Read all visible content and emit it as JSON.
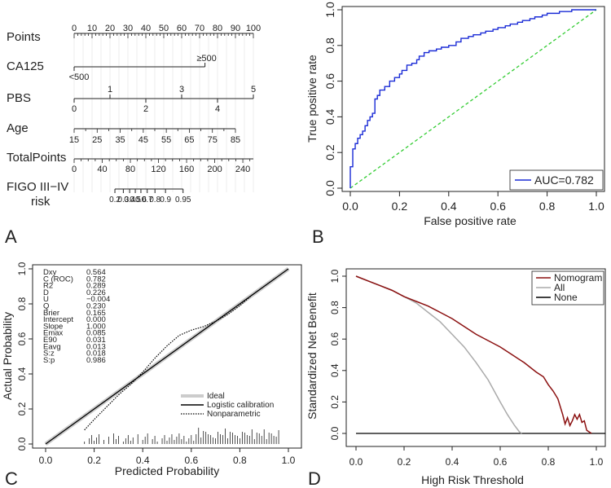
{
  "panel_labels": [
    "A",
    "B",
    "C",
    "D"
  ],
  "chart_data": [
    {
      "type": "nomogram",
      "panel": "A",
      "rows": [
        {
          "label": "Points",
          "ticks": [
            "0",
            "10",
            "20",
            "30",
            "40",
            "50",
            "60",
            "70",
            "80",
            "90",
            "100"
          ],
          "min": 0,
          "max": 100
        },
        {
          "label": "CA125",
          "levels": [
            {
              "text": "≥500",
              "points": 73
            },
            {
              "text": "<500",
              "points": 0
            }
          ]
        },
        {
          "label": "PBS",
          "levels_top": [
            {
              "text": "1",
              "points": 20
            },
            {
              "text": "3",
              "points": 60
            },
            {
              "text": "5",
              "points": 100
            }
          ],
          "levels_bottom": [
            {
              "text": "0",
              "points": 0
            },
            {
              "text": "2",
              "points": 40
            },
            {
              "text": "4",
              "points": 80
            }
          ]
        },
        {
          "label": "Age",
          "ticks": [
            "15",
            "25",
            "35",
            "45",
            "55",
            "65",
            "75",
            "85"
          ],
          "min_points": 0,
          "max_points": 90
        },
        {
          "label": "TotalPoints",
          "ticks": [
            "0",
            "40",
            "80",
            "120",
            "160",
            "200",
            "240"
          ],
          "min": 0,
          "max": 255
        },
        {
          "label": "FIGO III−IV",
          "label2": "risk",
          "ticks": [
            {
              "text": "0.2",
              "tp": 58
            },
            {
              "text": "0.3",
              "tp": 70
            },
            {
              "text": "0.4",
              "tp": 79
            },
            {
              "text": "0.5",
              "tp": 87
            },
            {
              "text": "0.6",
              "tp": 95
            },
            {
              "text": "0.7",
              "tp": 104
            },
            {
              "text": "0.8",
              "tp": 115
            },
            {
              "text": "0.9",
              "tp": 130
            },
            {
              "text": "0.95",
              "tp": 155
            }
          ]
        }
      ]
    },
    {
      "type": "line",
      "panel": "B",
      "title": "",
      "xlabel": "False positive rate",
      "ylabel": "True positive rate",
      "xlim": [
        0,
        1
      ],
      "ylim": [
        0,
        1
      ],
      "xticks": [
        "0.0",
        "0.2",
        "0.4",
        "0.6",
        "0.8",
        "1.0"
      ],
      "yticks": [
        "0.0",
        "0.2",
        "0.4",
        "0.6",
        "0.8",
        "1.0"
      ],
      "legend": "AUC=0.782",
      "legend_position": "bottom-right",
      "series": [
        {
          "name": "ROC",
          "color": "#1a2bd6",
          "x": [
            0,
            0,
            0.01,
            0.01,
            0.02,
            0.03,
            0.04,
            0.05,
            0.06,
            0.07,
            0.08,
            0.09,
            0.1,
            0.1,
            0.11,
            0.12,
            0.14,
            0.16,
            0.18,
            0.2,
            0.21,
            0.23,
            0.25,
            0.27,
            0.28,
            0.3,
            0.32,
            0.35,
            0.37,
            0.4,
            0.43,
            0.45,
            0.48,
            0.5,
            0.53,
            0.55,
            0.58,
            0.6,
            0.63,
            0.65,
            0.68,
            0.7,
            0.73,
            0.75,
            0.78,
            0.8,
            0.83,
            0.85,
            0.88,
            0.9,
            0.93,
            0.96,
            1.0
          ],
          "y": [
            0,
            0.06,
            0.12,
            0.18,
            0.22,
            0.25,
            0.28,
            0.3,
            0.32,
            0.35,
            0.38,
            0.4,
            0.42,
            0.48,
            0.5,
            0.52,
            0.55,
            0.57,
            0.6,
            0.62,
            0.64,
            0.66,
            0.69,
            0.7,
            0.72,
            0.74,
            0.76,
            0.77,
            0.78,
            0.79,
            0.8,
            0.82,
            0.84,
            0.85,
            0.86,
            0.87,
            0.88,
            0.89,
            0.9,
            0.91,
            0.92,
            0.93,
            0.94,
            0.95,
            0.96,
            0.97,
            0.98,
            0.98,
            0.99,
            0.99,
            1.0,
            1.0,
            1.0
          ]
        },
        {
          "name": "Reference",
          "color": "#33cc33",
          "dashed": true,
          "x": [
            0,
            1
          ],
          "y": [
            0,
            1
          ]
        }
      ]
    },
    {
      "type": "line",
      "panel": "C",
      "xlabel": "Predicted Probability",
      "ylabel": "Actual Probability",
      "xlim": [
        0,
        1
      ],
      "ylim": [
        0,
        1
      ],
      "xticks": [
        "0.0",
        "0.2",
        "0.4",
        "0.6",
        "0.8",
        "1.0"
      ],
      "yticks": [
        "0.0",
        "0.2",
        "0.4",
        "0.6",
        "0.8",
        "1.0"
      ],
      "stats": [
        {
          "name": "Dxy",
          "value": "0.564"
        },
        {
          "name": "C (ROC)",
          "value": "0.782"
        },
        {
          "name": "R2",
          "value": "0.289"
        },
        {
          "name": "D",
          "value": "0.226"
        },
        {
          "name": "U",
          "value": "−0.004"
        },
        {
          "name": "Q",
          "value": "0.230"
        },
        {
          "name": "Brier",
          "value": "0.165"
        },
        {
          "name": "Intercept",
          "value": "0.000"
        },
        {
          "name": "Slope",
          "value": "1.000"
        },
        {
          "name": "Emax",
          "value": "0.085"
        },
        {
          "name": "E90",
          "value": "0.031"
        },
        {
          "name": "Eavg",
          "value": "0.013"
        },
        {
          "name": "S:z",
          "value": "0.018"
        },
        {
          "name": "S:p",
          "value": "0.986"
        }
      ],
      "legend": [
        "Ideal",
        "Logistic calibration",
        "Nonparametric"
      ],
      "legend_position": "bottom-right",
      "series": [
        {
          "name": "Ideal",
          "color": "#cccccc",
          "x": [
            0,
            1
          ],
          "y": [
            0,
            1
          ]
        },
        {
          "name": "Logistic calibration",
          "color": "#000000",
          "x": [
            0,
            1
          ],
          "y": [
            0,
            1
          ]
        },
        {
          "name": "Nonparametric",
          "color": "#000000",
          "dotted": true,
          "x": [
            0.16,
            0.2,
            0.25,
            0.3,
            0.35,
            0.4,
            0.45,
            0.5,
            0.55,
            0.6,
            0.65,
            0.7,
            0.75,
            0.8,
            0.85,
            0.9,
            0.95
          ],
          "y": [
            0.08,
            0.14,
            0.21,
            0.28,
            0.34,
            0.41,
            0.49,
            0.56,
            0.62,
            0.65,
            0.67,
            0.7,
            0.74,
            0.79,
            0.85,
            0.9,
            0.95
          ]
        }
      ],
      "rug": [
        0.16,
        0.18,
        0.19,
        0.2,
        0.21,
        0.22,
        0.24,
        0.26,
        0.28,
        0.29,
        0.3,
        0.32,
        0.33,
        0.34,
        0.35,
        0.36,
        0.38,
        0.4,
        0.41,
        0.42,
        0.44,
        0.45,
        0.46,
        0.48,
        0.49,
        0.5,
        0.51,
        0.52,
        0.53,
        0.54,
        0.55,
        0.56,
        0.57,
        0.58,
        0.59,
        0.6,
        0.61,
        0.62,
        0.63,
        0.64,
        0.65,
        0.66,
        0.67,
        0.68,
        0.69,
        0.7,
        0.71,
        0.72,
        0.73,
        0.74,
        0.75,
        0.76,
        0.77,
        0.78,
        0.79,
        0.8,
        0.81,
        0.82,
        0.83,
        0.84,
        0.85,
        0.86,
        0.87,
        0.88,
        0.89,
        0.9,
        0.91,
        0.92,
        0.93,
        0.94,
        0.95,
        0.96
      ]
    },
    {
      "type": "line",
      "panel": "D",
      "xlabel": "High Risk Threshold",
      "ylabel": "Standardized Net Benefit",
      "xlim": [
        0,
        1
      ],
      "ylim": [
        -0.05,
        1.02
      ],
      "xticks": [
        "0.0",
        "0.2",
        "0.4",
        "0.6",
        "0.8",
        "1.0"
      ],
      "yticks": [
        "0.0",
        "0.2",
        "0.4",
        "0.6",
        "0.8",
        "1.0"
      ],
      "legend": [
        "Nomogram",
        "All",
        "None"
      ],
      "legend_position": "top-right",
      "series": [
        {
          "name": "Nomogram",
          "color": "#8b1010",
          "x": [
            0,
            0.05,
            0.1,
            0.15,
            0.2,
            0.25,
            0.3,
            0.35,
            0.4,
            0.45,
            0.5,
            0.55,
            0.6,
            0.65,
            0.7,
            0.75,
            0.78,
            0.8,
            0.82,
            0.84,
            0.85,
            0.86,
            0.87,
            0.88,
            0.89,
            0.9,
            0.91,
            0.92,
            0.93,
            0.94,
            0.95,
            0.96,
            0.97,
            0.98
          ],
          "y": [
            1.0,
            0.97,
            0.94,
            0.91,
            0.87,
            0.84,
            0.81,
            0.77,
            0.73,
            0.68,
            0.63,
            0.59,
            0.55,
            0.5,
            0.45,
            0.39,
            0.36,
            0.31,
            0.27,
            0.22,
            0.17,
            0.12,
            0.06,
            0.1,
            0.05,
            0.08,
            0.12,
            0.09,
            0.12,
            0.07,
            0.08,
            0.02,
            0.01,
            0.0
          ]
        },
        {
          "name": "All",
          "color": "#aaaaaa",
          "x": [
            0,
            0.05,
            0.1,
            0.15,
            0.2,
            0.25,
            0.3,
            0.35,
            0.4,
            0.45,
            0.5,
            0.55,
            0.6,
            0.63,
            0.66,
            0.68,
            0.69
          ],
          "y": [
            1.0,
            0.97,
            0.94,
            0.91,
            0.87,
            0.83,
            0.77,
            0.71,
            0.63,
            0.55,
            0.45,
            0.34,
            0.2,
            0.12,
            0.05,
            0.01,
            0.0
          ]
        },
        {
          "name": "None",
          "color": "#000000",
          "x": [
            0,
            1
          ],
          "y": [
            0,
            0
          ]
        }
      ]
    }
  ]
}
